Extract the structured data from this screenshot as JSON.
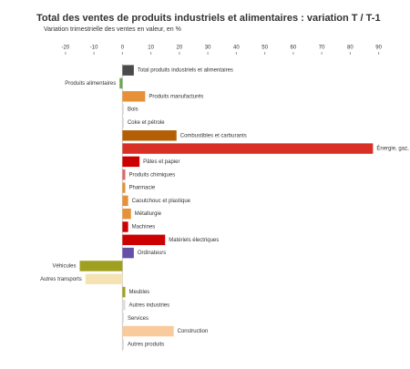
{
  "chart_data": {
    "type": "hbar",
    "title": "Total des ventes de produits industriels et alimentaires : variation T / T-1",
    "subtitle": "Variation trimestrielle des ventes en valeur, en %",
    "categories": [
      "Total produits industriels et alimentaires",
      "Produits alimentaires",
      "Produits manufacturés",
      "Bois",
      "Coke et pétrole",
      "Combustibles et carburants",
      "Énergie, gaz, eau",
      "Pâtes et papier",
      "Produits chimiques",
      "Pharmacie",
      "Caoutchouc et plastique",
      "Métallurgie",
      "Machines",
      "Matériels électriques",
      "Ordinateurs",
      "Véhicules",
      "Autres transports",
      "Meubles",
      "Autres industries",
      "Services",
      "Construction",
      "Autres produits"
    ],
    "values": [
      4,
      -1,
      8,
      0.5,
      0.5,
      19,
      88,
      6,
      1,
      1,
      2,
      3,
      2,
      15,
      4,
      -15,
      -13,
      1,
      1,
      0.5,
      18,
      0.5
    ],
    "colors": [
      "#4a4a4a",
      "#6aa84f",
      "#e69138",
      "#dddddd",
      "#dddddd",
      "#b45f06",
      "#d93025",
      "#cc0000",
      "#e06666",
      "#e69138",
      "#e69138",
      "#e69138",
      "#cc0000",
      "#cc0000",
      "#674ea7",
      "#a0a020",
      "#f6e3b4",
      "#a0a020",
      "#dddddd",
      "#dddddd",
      "#f9cb9c",
      "#dddddd"
    ],
    "xlim": [
      -27,
      93
    ],
    "xticks": [
      -20,
      -10,
      0,
      10,
      20,
      30,
      40,
      50,
      60,
      70,
      80,
      90
    ]
  }
}
